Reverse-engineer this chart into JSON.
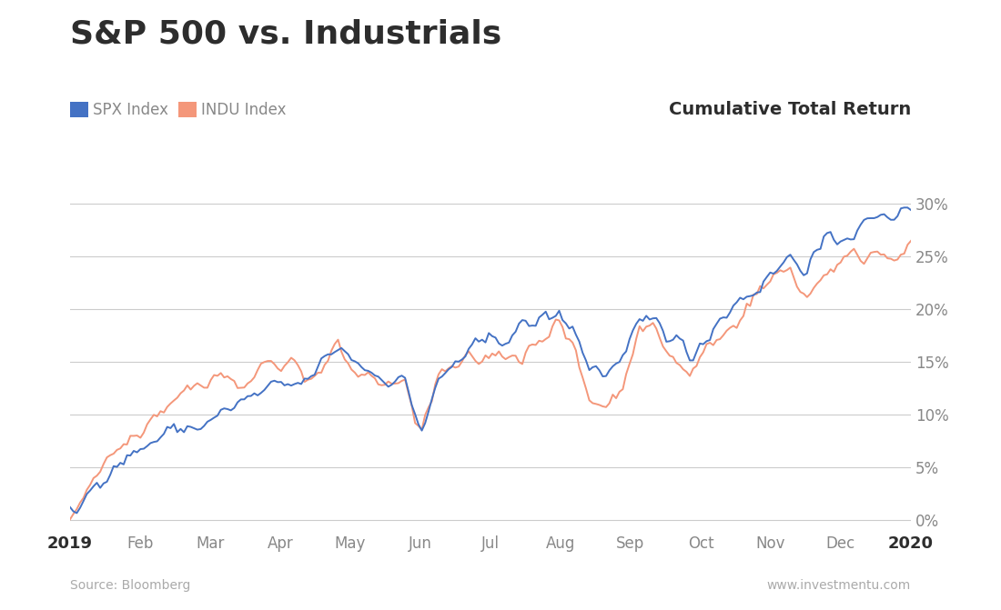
{
  "title": "S&P 500 vs. Industrials",
  "subtitle_right": "Cumulative Total Return",
  "legend_entries": [
    "SPX Index",
    "INDU Index"
  ],
  "spx_color": "#4472C4",
  "indu_color": "#F4977A",
  "source_left": "Source: Bloomberg",
  "source_right": "www.investmentu.com",
  "yticks": [
    0,
    5,
    10,
    15,
    20,
    25,
    30
  ],
  "ytick_labels": [
    "0%",
    "5%",
    "10%",
    "15%",
    "20%",
    "25%",
    "30%"
  ],
  "xtick_labels": [
    "2019",
    "Feb",
    "Mar",
    "Apr",
    "May",
    "Jun",
    "Jul",
    "Aug",
    "Sep",
    "Oct",
    "Nov",
    "Dec",
    "2020"
  ],
  "ylim": [
    -1.0,
    32.0
  ],
  "background_color": "#ffffff",
  "title_color": "#2d2d2d",
  "text_color": "#888888",
  "grid_color": "#cccccc",
  "title_fontsize": 26,
  "legend_fontsize": 12,
  "tick_fontsize": 12,
  "subtitle_fontsize": 14
}
